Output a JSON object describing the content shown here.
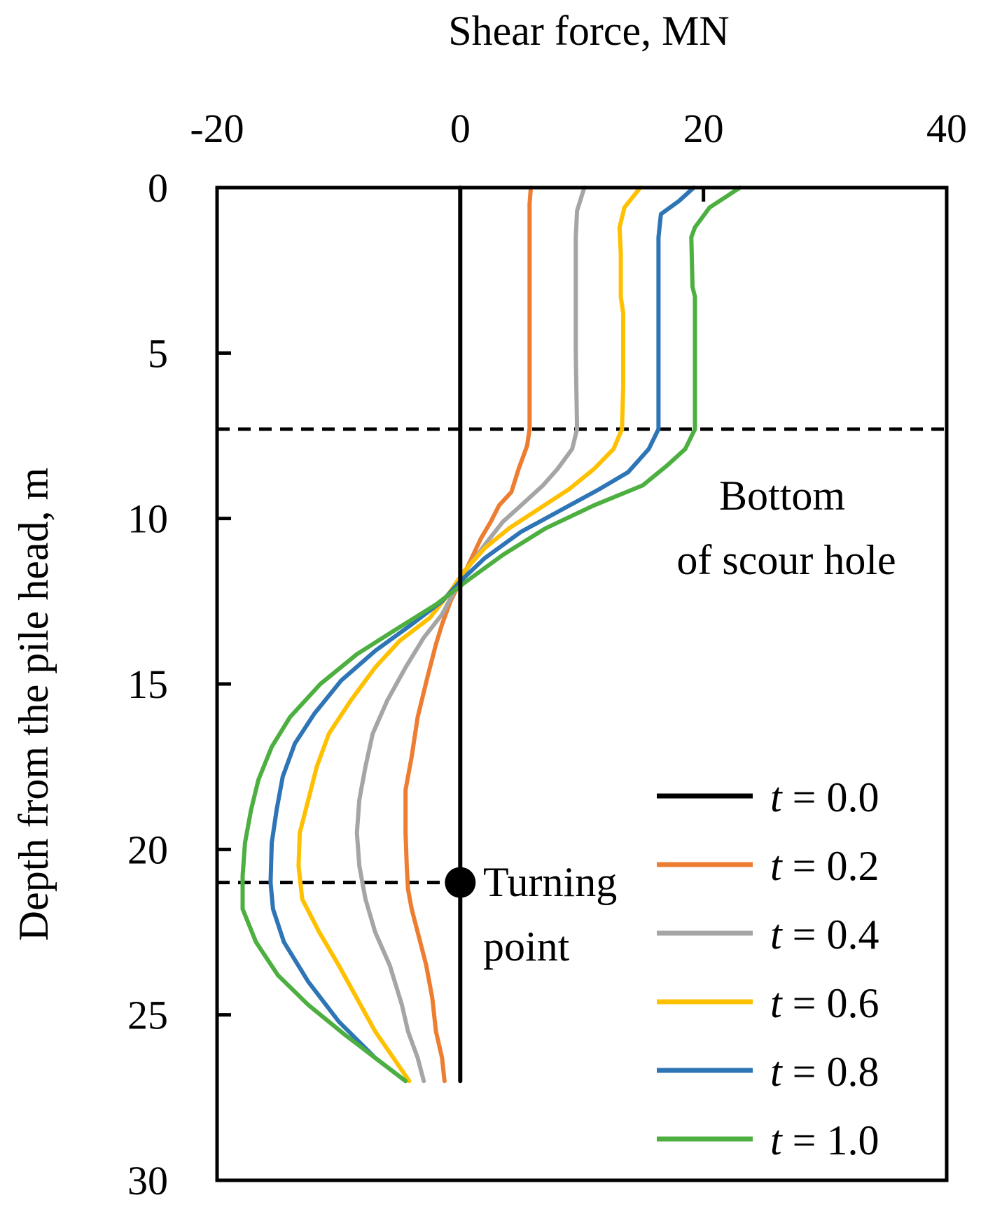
{
  "chart_data": {
    "type": "line",
    "orientation": "depth-vertical",
    "title": "",
    "xlabel": "Shear force, MN",
    "ylabel": "Depth from the pile head, m",
    "xlim": [
      -20,
      40
    ],
    "ylim": [
      0,
      30
    ],
    "y_inverted": true,
    "x_axis_position": "top",
    "x_ticks": [
      -20,
      0,
      20,
      40
    ],
    "y_ticks": [
      0,
      5,
      10,
      15,
      20,
      25,
      30
    ],
    "x_tick_labels": [
      "-20",
      "0",
      "20",
      "40"
    ],
    "y_tick_labels": [
      "0",
      "5",
      "10",
      "15",
      "20",
      "25",
      "30"
    ],
    "grid": false,
    "legend_position": "bottom-right",
    "series": [
      {
        "name": "t = 0.0",
        "legend_var": "t",
        "legend_rest": " = 0.0",
        "color": "#000000",
        "points": [
          [
            0,
            0
          ],
          [
            0,
            27
          ]
        ]
      },
      {
        "name": "t = 0.2",
        "legend_var": "t",
        "legend_rest": " = 0.2",
        "color": "#ED7D31",
        "points": [
          [
            5.8,
            0
          ],
          [
            5.7,
            0.5
          ],
          [
            5.7,
            2
          ],
          [
            5.7,
            4
          ],
          [
            5.7,
            6
          ],
          [
            5.7,
            7.3
          ],
          [
            5.5,
            7.8
          ],
          [
            4.8,
            8.5
          ],
          [
            4.2,
            9.2
          ],
          [
            3.2,
            9.6
          ],
          [
            2.5,
            10.1
          ],
          [
            1.7,
            10.6
          ],
          [
            0.8,
            11.3
          ],
          [
            0,
            11.9
          ],
          [
            -0.8,
            12.5
          ],
          [
            -1.5,
            13.2
          ],
          [
            -2.0,
            13.8
          ],
          [
            -2.7,
            14.8
          ],
          [
            -3.5,
            16.0
          ],
          [
            -4.0,
            17.2
          ],
          [
            -4.5,
            18.2
          ],
          [
            -4.5,
            19.5
          ],
          [
            -4.4,
            20.5
          ],
          [
            -4.3,
            21.2
          ],
          [
            -4.0,
            21.8
          ],
          [
            -3.5,
            22.5
          ],
          [
            -2.8,
            23.5
          ],
          [
            -2.3,
            24.5
          ],
          [
            -2.0,
            25.5
          ],
          [
            -1.5,
            26.3
          ],
          [
            -1.3,
            27.0
          ]
        ]
      },
      {
        "name": "t = 0.4",
        "legend_var": "t",
        "legend_rest": " = 0.4",
        "color": "#A5A5A5",
        "points": [
          [
            10.2,
            0
          ],
          [
            9.6,
            0.7
          ],
          [
            9.5,
            1.5
          ],
          [
            9.5,
            3
          ],
          [
            9.5,
            5
          ],
          [
            9.6,
            7.3
          ],
          [
            9.2,
            7.9
          ],
          [
            8.0,
            8.5
          ],
          [
            6.8,
            9.0
          ],
          [
            5.0,
            9.6
          ],
          [
            3.5,
            10.1
          ],
          [
            2.0,
            10.8
          ],
          [
            0.6,
            11.5
          ],
          [
            -0.5,
            12.2
          ],
          [
            -1.5,
            12.9
          ],
          [
            -3.0,
            13.6
          ],
          [
            -4.5,
            14.5
          ],
          [
            -6.0,
            15.5
          ],
          [
            -7.2,
            16.5
          ],
          [
            -7.8,
            17.5
          ],
          [
            -8.3,
            18.5
          ],
          [
            -8.5,
            19.5
          ],
          [
            -8.3,
            20.5
          ],
          [
            -7.8,
            21.5
          ],
          [
            -7.0,
            22.5
          ],
          [
            -5.8,
            23.5
          ],
          [
            -4.8,
            24.7
          ],
          [
            -4.3,
            25.5
          ],
          [
            -3.5,
            26.3
          ],
          [
            -3.0,
            27.0
          ]
        ]
      },
      {
        "name": "t = 0.6",
        "legend_var": "t",
        "legend_rest": " = 0.6",
        "color": "#FFC000",
        "points": [
          [
            14.8,
            0
          ],
          [
            13.5,
            0.6
          ],
          [
            13.1,
            1.2
          ],
          [
            13.2,
            2
          ],
          [
            13.2,
            3.3
          ],
          [
            13.4,
            3.8
          ],
          [
            13.4,
            5
          ],
          [
            13.4,
            6
          ],
          [
            13.3,
            7.3
          ],
          [
            12.6,
            7.9
          ],
          [
            11.0,
            8.5
          ],
          [
            9.0,
            9.1
          ],
          [
            6.5,
            9.7
          ],
          [
            4.0,
            10.3
          ],
          [
            2.0,
            10.9
          ],
          [
            0.3,
            11.6
          ],
          [
            -1.0,
            12.3
          ],
          [
            -2.5,
            13.0
          ],
          [
            -5.0,
            13.7
          ],
          [
            -7.0,
            14.5
          ],
          [
            -9.0,
            15.5
          ],
          [
            -10.8,
            16.5
          ],
          [
            -11.8,
            17.5
          ],
          [
            -12.5,
            18.5
          ],
          [
            -13.2,
            19.5
          ],
          [
            -13.3,
            20.5
          ],
          [
            -13.0,
            21.5
          ],
          [
            -11.6,
            22.5
          ],
          [
            -10.0,
            23.5
          ],
          [
            -8.5,
            24.5
          ],
          [
            -7.0,
            25.5
          ],
          [
            -5.5,
            26.3
          ],
          [
            -4.2,
            27.0
          ]
        ]
      },
      {
        "name": "t = 0.8",
        "legend_var": "t",
        "legend_rest": " = 0.8",
        "color": "#2E75B6",
        "points": [
          [
            19.2,
            0
          ],
          [
            18.0,
            0.4
          ],
          [
            16.5,
            0.8
          ],
          [
            16.3,
            1.5
          ],
          [
            16.3,
            3
          ],
          [
            16.3,
            5
          ],
          [
            16.3,
            7.3
          ],
          [
            15.5,
            7.9
          ],
          [
            13.8,
            8.6
          ],
          [
            11.5,
            9.1
          ],
          [
            8.0,
            9.8
          ],
          [
            5.0,
            10.4
          ],
          [
            2.0,
            11.2
          ],
          [
            0,
            11.9
          ],
          [
            -1.5,
            12.5
          ],
          [
            -4.0,
            13.2
          ],
          [
            -7.0,
            14.0
          ],
          [
            -9.8,
            14.9
          ],
          [
            -12.0,
            15.9
          ],
          [
            -13.6,
            16.8
          ],
          [
            -14.6,
            17.8
          ],
          [
            -15.1,
            18.8
          ],
          [
            -15.5,
            19.8
          ],
          [
            -15.6,
            21.0
          ],
          [
            -15.4,
            21.8
          ],
          [
            -14.5,
            22.8
          ],
          [
            -12.5,
            24.0
          ],
          [
            -10.0,
            25.2
          ],
          [
            -7.0,
            26.3
          ],
          [
            -4.5,
            27.0
          ]
        ]
      },
      {
        "name": "t = 1.0",
        "legend_var": "t",
        "legend_rest": " = 1.0",
        "color": "#4CAF3F",
        "points": [
          [
            23.0,
            0
          ],
          [
            20.5,
            0.6
          ],
          [
            19.3,
            1.2
          ],
          [
            19.0,
            1.5
          ],
          [
            19.1,
            3
          ],
          [
            19.3,
            3.3
          ],
          [
            19.3,
            5
          ],
          [
            19.3,
            6
          ],
          [
            19.3,
            7.3
          ],
          [
            18.5,
            7.9
          ],
          [
            17.0,
            8.4
          ],
          [
            15.0,
            9.0
          ],
          [
            11.0,
            9.6
          ],
          [
            7.0,
            10.3
          ],
          [
            3.5,
            11.1
          ],
          [
            0.5,
            11.9
          ],
          [
            -2.0,
            12.6
          ],
          [
            -5.5,
            13.4
          ],
          [
            -8.5,
            14.1
          ],
          [
            -11.5,
            15.0
          ],
          [
            -14.0,
            16.0
          ],
          [
            -15.5,
            16.9
          ],
          [
            -16.6,
            17.9
          ],
          [
            -17.2,
            18.8
          ],
          [
            -17.7,
            19.8
          ],
          [
            -17.9,
            20.8
          ],
          [
            -17.9,
            21.8
          ],
          [
            -16.8,
            22.8
          ],
          [
            -15.0,
            23.8
          ],
          [
            -12.5,
            24.7
          ],
          [
            -9.5,
            25.6
          ],
          [
            -7.0,
            26.3
          ],
          [
            -4.5,
            27.0
          ]
        ]
      }
    ],
    "annotations": {
      "scour_bottom_depth": 7.3,
      "scour_bottom_line1": "Bottom",
      "scour_bottom_line2": "of scour hole",
      "turning_point_depth": 21.0,
      "turning_point_x": 0,
      "turning_point_line1": "Turning",
      "turning_point_line2": "point"
    }
  }
}
